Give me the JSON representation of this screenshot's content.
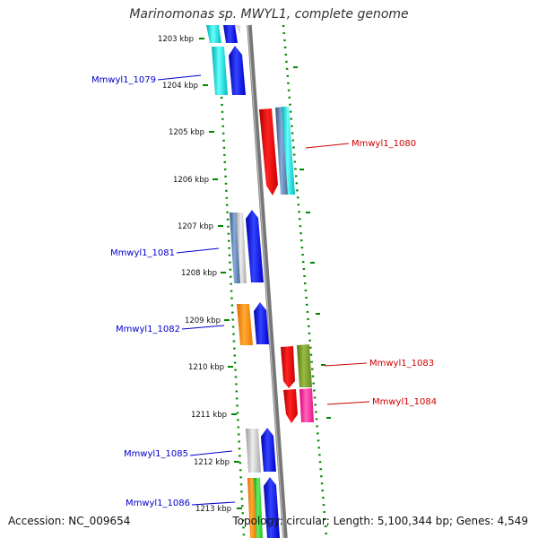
{
  "title": "Marinomonas sp. MWYL1, complete genome",
  "footer": {
    "accession": "Accession: NC_009654",
    "topology": "Topology: circular; Length: 5,100,344 bp; Genes: 4,549"
  },
  "scale": {
    "unit": "kbp",
    "ticks": [
      "1203 kbp",
      "1204 kbp",
      "1205 kbp",
      "1206 kbp",
      "1207 kbp",
      "1208 kbp",
      "1209 kbp",
      "1210 kbp",
      "1211 kbp",
      "1212 kbp",
      "1213 kbp"
    ]
  },
  "genes": [
    {
      "name": "Mmwyl1_1079",
      "strand": "left",
      "color": "#0000cc"
    },
    {
      "name": "Mmwyl1_1080",
      "strand": "right",
      "color": "#cc0000"
    },
    {
      "name": "Mmwyl1_1081",
      "strand": "left",
      "color": "#0000cc"
    },
    {
      "name": "Mmwyl1_1082",
      "strand": "left",
      "color": "#0000cc"
    },
    {
      "name": "Mmwyl1_1083",
      "strand": "right",
      "color": "#cc0000"
    },
    {
      "name": "Mmwyl1_1084",
      "strand": "right",
      "color": "#cc0000"
    },
    {
      "name": "Mmwyl1_1085",
      "strand": "left",
      "color": "#0000cc"
    },
    {
      "name": "Mmwyl1_1086",
      "strand": "left",
      "color": "#0000cc"
    }
  ],
  "colors": {
    "backbone": "#888888",
    "dashes": "#008800",
    "cyan": "#00cccc",
    "blue": "#0000ee",
    "red": "#ee0000",
    "steel": "#4477aa",
    "gray": "#bbbbbb",
    "orange": "#ff8800",
    "olive": "#669922",
    "pink": "#ff1493",
    "green": "#22bb22"
  }
}
